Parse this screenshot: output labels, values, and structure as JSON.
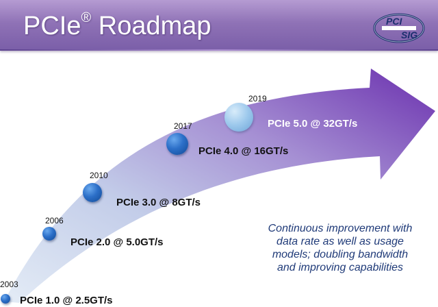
{
  "header": {
    "title": "PCIe",
    "title_mark": "®",
    "title_suffix": " Roadmap",
    "logo_top": "PCI",
    "logo_bottom": "SIG"
  },
  "colors": {
    "header_purple": "#8f72b6",
    "arrow_purple": "#7a44b4",
    "arrow_light": "#cfd9ee",
    "marker_blue": "#2c6fc8",
    "future_marker": "#9cc8ec",
    "note_blue": "#1f3a78"
  },
  "milestones": [
    {
      "year": "2003",
      "label": "PCIe 1.0 @ 2.5GT/s",
      "status": "released"
    },
    {
      "year": "2006",
      "label": "PCIe 2.0 @ 5.0GT/s",
      "status": "released"
    },
    {
      "year": "2010",
      "label": "PCIe 3.0 @ 8GT/s",
      "status": "released"
    },
    {
      "year": "2017",
      "label": "PCIe 4.0 @ 16GT/s",
      "status": "released"
    },
    {
      "year": "2019",
      "label": "PCIe 5.0 @ 32GT/s",
      "status": "future"
    }
  ],
  "note": {
    "lines": [
      "Continuous improvement with",
      "data rate as well as usage",
      "models; doubling bandwidth",
      "and improving capabilities"
    ]
  }
}
